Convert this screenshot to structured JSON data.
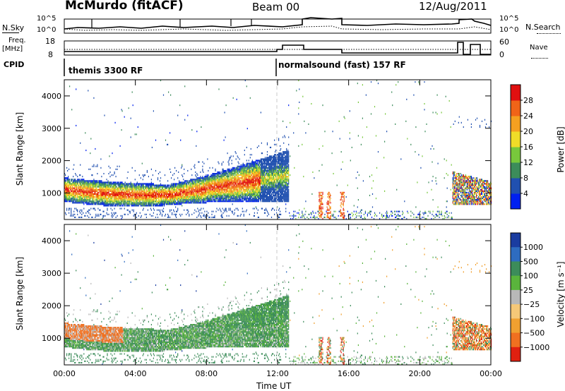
{
  "header": {
    "station": "McMurdo (fitACF)",
    "beam": "Beam 00",
    "date": "12/Aug/2011"
  },
  "strips": {
    "nsky_label": "N.Sky",
    "nsearch_label": "N.Search",
    "nsky_ticks": [
      "10^5",
      "10^0"
    ],
    "nsearch_ticks": [
      "10^5",
      "10^0"
    ],
    "freq_label": "Freq.",
    "freq_unit": "[MHz]",
    "freq_ticks": [
      "18",
      "8"
    ],
    "nave_label": "Nave",
    "nave_ticks": [
      "60",
      "0"
    ],
    "cpid_label": "CPID",
    "cpid_segments": [
      {
        "label": "themis 3300 RF",
        "start_hour": 0,
        "end_hour": 12
      },
      {
        "label": "normalsound (fast) 157 RF",
        "start_hour": 12,
        "end_hour": 24
      }
    ]
  },
  "chart_data": [
    {
      "type": "heatmap",
      "name": "power",
      "xlabel": "",
      "ylabel": "Slant Range [km]",
      "x_ticks": [
        "00:00",
        "04:00",
        "08:00",
        "12:00",
        "16:00",
        "20:00",
        "00:00"
      ],
      "xlim": [
        0,
        24
      ],
      "ylim": [
        180,
        4500
      ],
      "y_ticks": [
        1000,
        2000,
        3000,
        4000
      ],
      "colorbar": {
        "label": "Power [dB]",
        "ticks": [
          4,
          8,
          12,
          16,
          20,
          24,
          28
        ],
        "range": [
          0,
          32
        ],
        "colors": [
          "#0020f0",
          "#2050b0",
          "#3c8c5a",
          "#78c83c",
          "#f0dc28",
          "#f5a020",
          "#f06418",
          "#e01010"
        ]
      }
    },
    {
      "type": "heatmap",
      "name": "velocity",
      "xlabel": "Time UT",
      "ylabel": "Slant Range [km]",
      "x_ticks": [
        "00:00",
        "04:00",
        "08:00",
        "12:00",
        "16:00",
        "20:00",
        "00:00"
      ],
      "xlim": [
        0,
        24
      ],
      "ylim": [
        180,
        4500
      ],
      "y_ticks": [
        1000,
        2000,
        3000,
        4000
      ],
      "colorbar": {
        "label": "Velocity [m s⁻¹]",
        "ticks": [
          "1000",
          "500",
          "100",
          "25",
          "−25",
          "−100",
          "−500",
          "−1000"
        ],
        "colors": [
          "#1a3ca0",
          "#2e6cc0",
          "#3c8c5a",
          "#5ab43c",
          "#b8b8b8",
          "#f5c878",
          "#f0a030",
          "#f07020",
          "#e02010"
        ]
      }
    }
  ]
}
